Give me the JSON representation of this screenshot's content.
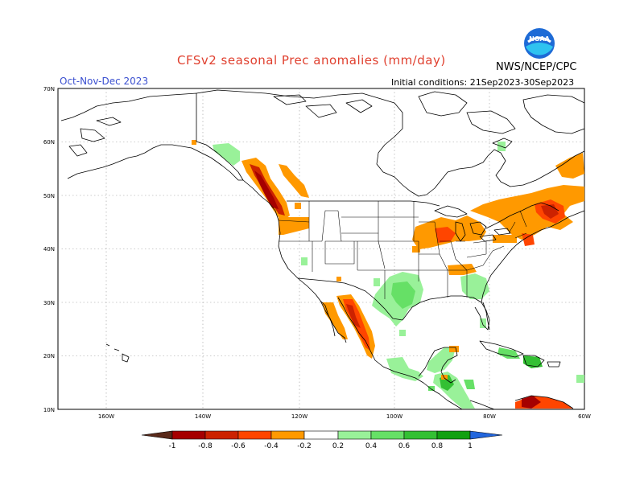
{
  "header": {
    "title": "CFSv2 seasonal Prec anomalies (mm/day)",
    "season": "Oct-Nov-Dec 2023",
    "initial_conditions": "Initial conditions: 21Sep2023-30Sep2023",
    "agency": "NWS/NCEP/CPC",
    "logo_text": "NOAA"
  },
  "map": {
    "lon_range": [
      -190,
      -60
    ],
    "lat_range": [
      10,
      70
    ],
    "lat_labels": [
      "70N",
      "60N",
      "50N",
      "40N",
      "30N",
      "20N",
      "10N"
    ],
    "lon_labels": [
      "160W",
      "140W",
      "120W",
      "100W",
      "80W",
      "60W"
    ]
  },
  "legend": {
    "labels": [
      "-1",
      "-0.8",
      "-0.6",
      "-0.4",
      "-0.2",
      "0.2",
      "0.4",
      "0.6",
      "0.8",
      "1"
    ],
    "colors": {
      "dry_extreme": "#5a2a1a",
      "dry_1": "#a50000",
      "dry_2": "#cc2200",
      "dry_3": "#ff4500",
      "dry_4": "#ff9900",
      "neutral": "#ffffff",
      "wet_1": "#99f199",
      "wet_2": "#66e066",
      "wet_3": "#33c033",
      "wet_4": "#11a011",
      "wet_extreme": "#2266dd"
    }
  }
}
